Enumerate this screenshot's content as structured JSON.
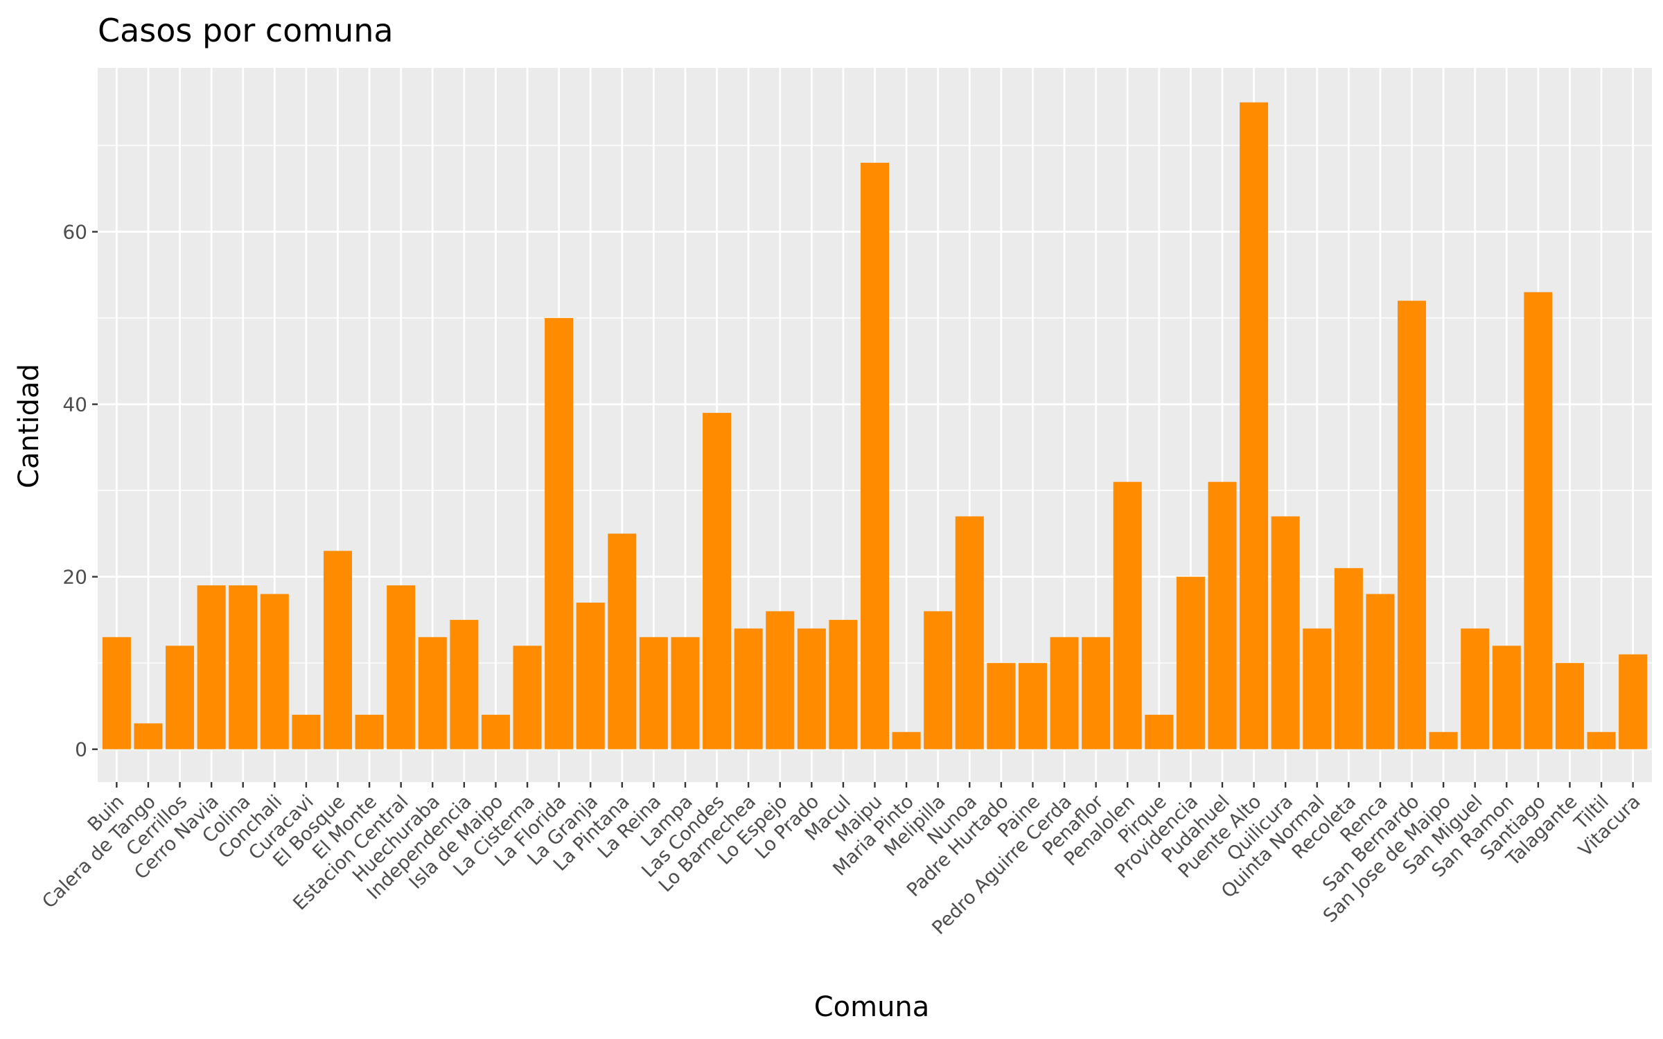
{
  "colors": {
    "panel_background": "#EBEBEB",
    "grid_major": "#FFFFFF",
    "bar_fill": "#FF8C00",
    "tick_text": "#4D4D4D"
  },
  "chart_data": {
    "type": "bar",
    "title": "Casos por comuna",
    "xlabel": "Comuna",
    "ylabel": "Cantidad",
    "ylim": [
      -3.8,
      79
    ],
    "yticks": [
      0,
      20,
      40,
      60
    ],
    "grid": true,
    "categories": [
      "Buin",
      "Calera de Tango",
      "Cerrillos",
      "Cerro Navia",
      "Colina",
      "Conchali",
      "Curacavi",
      "El Bosque",
      "El Monte",
      "Estacion Central",
      "Huechuraba",
      "Independencia",
      "Isla de Maipo",
      "La Cisterna",
      "La Florida",
      "La Granja",
      "La Pintana",
      "La Reina",
      "Lampa",
      "Las Condes",
      "Lo Barnechea",
      "Lo Espejo",
      "Lo Prado",
      "Macul",
      "Maipu",
      "Maria Pinto",
      "Melipilla",
      "Nunoa",
      "Padre Hurtado",
      "Paine",
      "Pedro Aguirre Cerda",
      "Penaflor",
      "Penalolen",
      "Pirque",
      "Providencia",
      "Pudahuel",
      "Puente Alto",
      "Quilicura",
      "Quinta Normal",
      "Recoleta",
      "Renca",
      "San Bernardo",
      "San Jose de Maipo",
      "San Miguel",
      "San Ramon",
      "Santiago",
      "Talagante",
      "Tiltil",
      "Vitacura"
    ],
    "values": [
      13,
      3,
      12,
      19,
      19,
      18,
      4,
      23,
      4,
      19,
      13,
      15,
      4,
      12,
      50,
      17,
      25,
      13,
      13,
      39,
      14,
      16,
      14,
      15,
      68,
      2,
      16,
      27,
      10,
      10,
      13,
      13,
      31,
      4,
      20,
      31,
      75,
      27,
      14,
      21,
      18,
      52,
      2,
      14,
      12,
      53,
      10,
      2,
      11
    ]
  }
}
